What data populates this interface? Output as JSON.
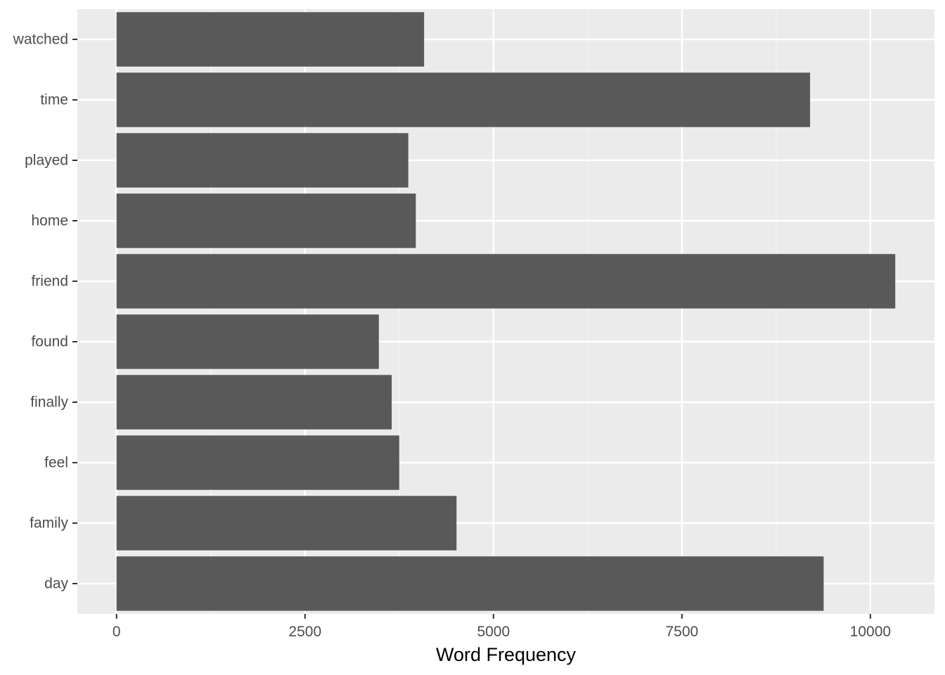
{
  "chart_data": {
    "type": "bar",
    "orientation": "horizontal",
    "categories": [
      "day",
      "family",
      "feel",
      "finally",
      "found",
      "friend",
      "home",
      "played",
      "time",
      "watched"
    ],
    "values": [
      9380,
      4510,
      3750,
      3650,
      3480,
      10330,
      3970,
      3870,
      9200,
      4080
    ],
    "title": "",
    "xlabel": "Word Frequency",
    "ylabel": "",
    "xlim": [
      -520,
      10850
    ],
    "xticks": [
      0,
      2500,
      5000,
      7500,
      10000
    ],
    "xtick_labels": [
      "0",
      "2500",
      "5000",
      "7500",
      "10000"
    ],
    "x_minor_ticks": [
      1250,
      3750,
      6250,
      8750
    ],
    "grid": true,
    "legend": "none",
    "colors": {
      "bar": "#595959",
      "panel": "#ebebeb",
      "grid_major": "#ffffff",
      "grid_minor": "#f5f5f5",
      "tick_text": "#4d4d4d",
      "axis_title": "#000000"
    }
  }
}
